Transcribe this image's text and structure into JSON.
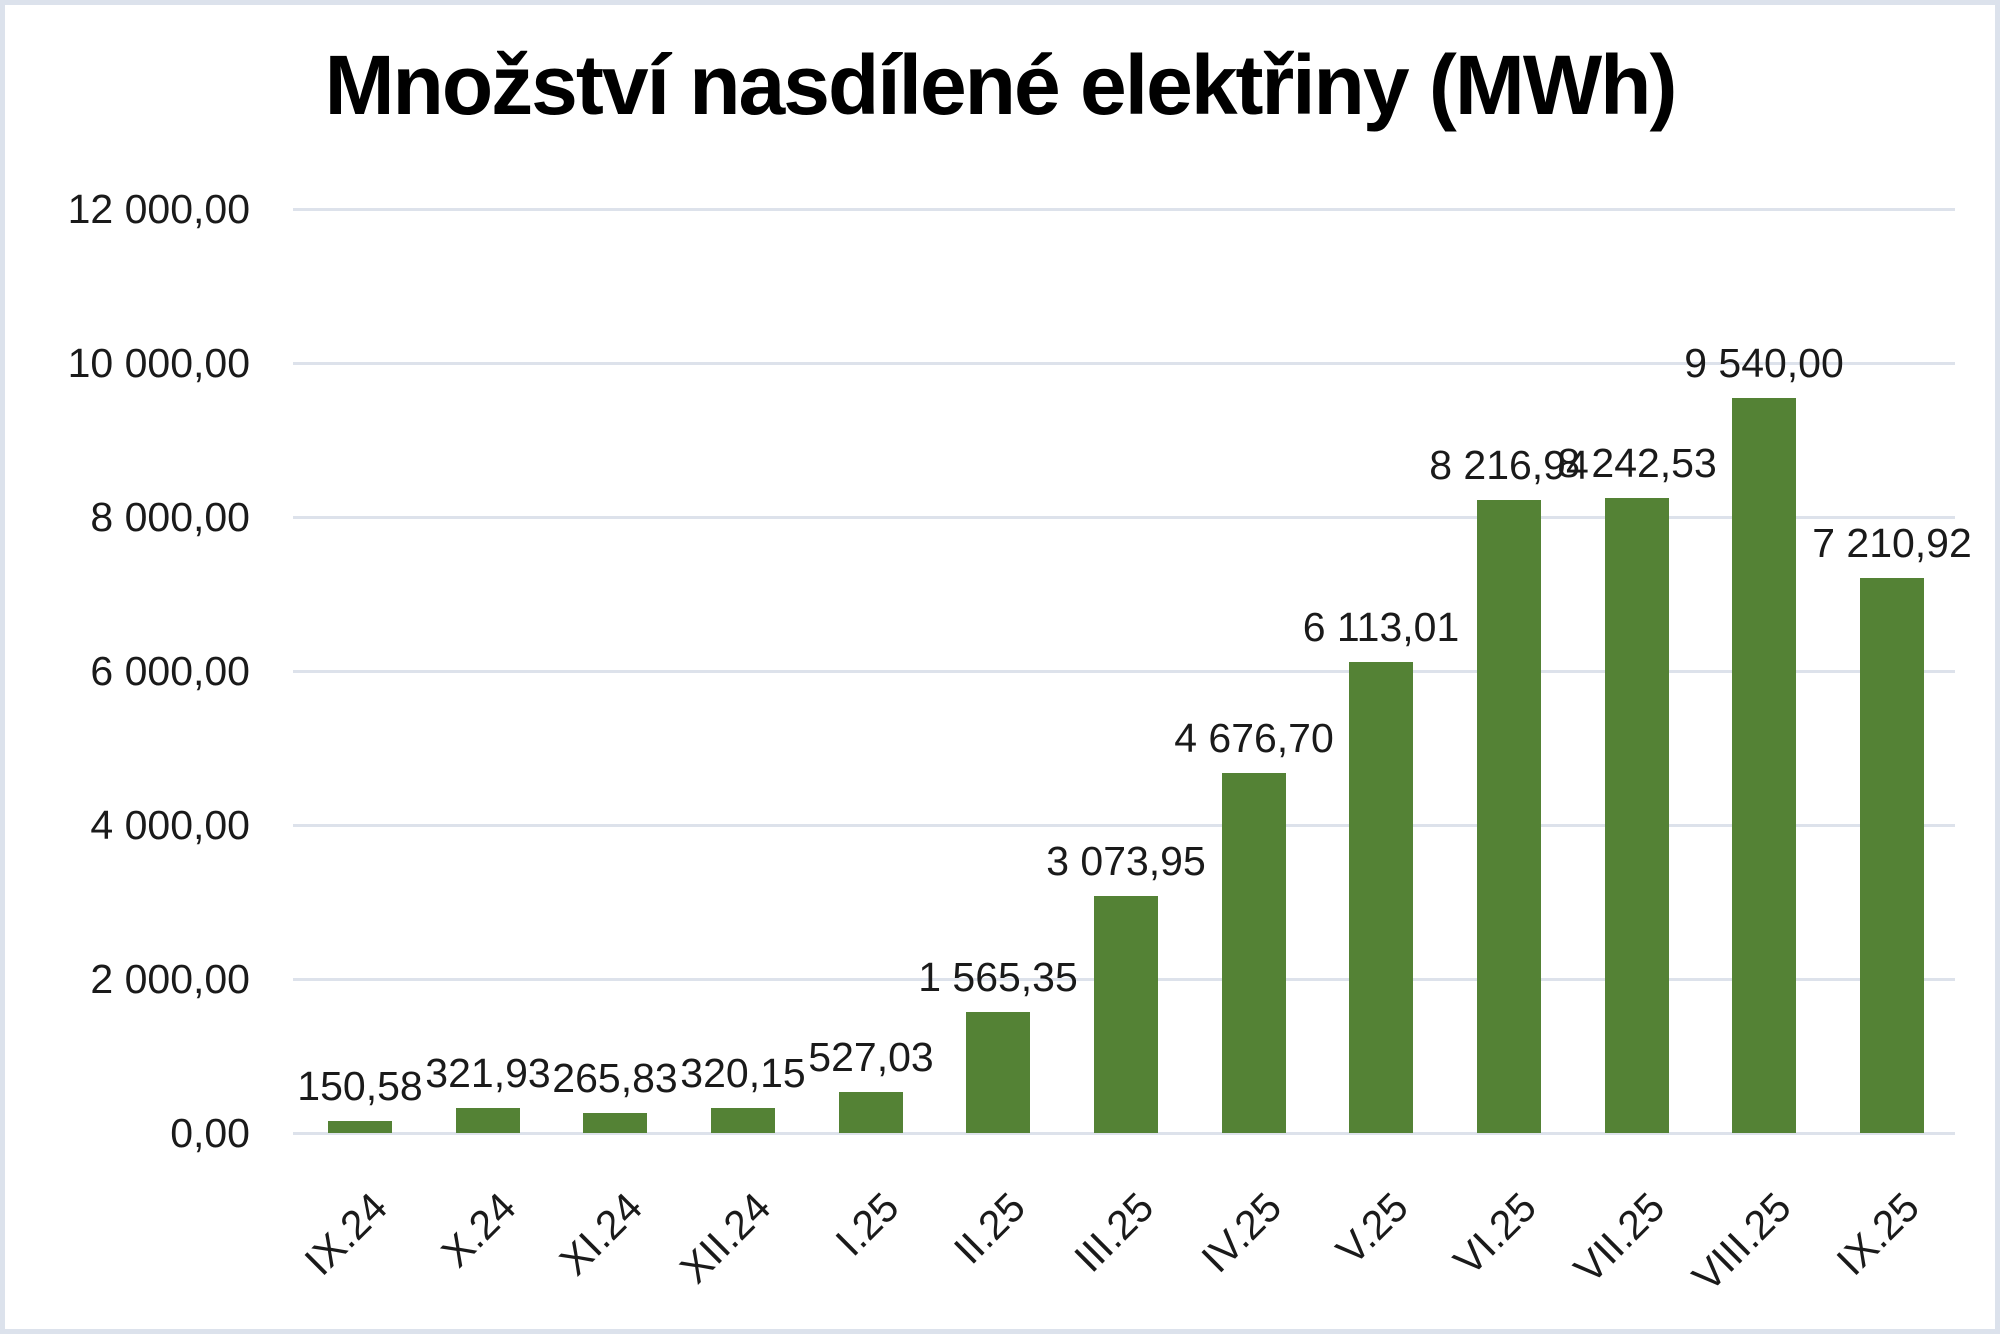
{
  "chart_data": {
    "type": "bar",
    "title": "Množství nasdílené elektřiny (MWh)",
    "categories": [
      "IX.24",
      "X.24",
      "XI.24",
      "XII.24",
      "I.25",
      "II.25",
      "III.25",
      "IV.25",
      "V.25",
      "VI.25",
      "VII.25",
      "VIII.25",
      "IX.25"
    ],
    "values": [
      150.58,
      321.93,
      265.83,
      320.15,
      527.03,
      1565.35,
      3073.95,
      4676.7,
      6113.01,
      8216.94,
      8242.53,
      9540.0,
      7210.92
    ],
    "value_labels": [
      "150,58",
      "321,93",
      "265,83",
      "320,15",
      "527,03",
      "1 565,35",
      "3 073,95",
      "4 676,70",
      "6 113,01",
      "8 216,94",
      "8 242,53",
      "9 540,00",
      "7 210,92"
    ],
    "xlabel": "",
    "ylabel": "",
    "ylim": [
      0,
      12000
    ],
    "yticks": [
      {
        "value": 0,
        "label": "0,00"
      },
      {
        "value": 2000,
        "label": "2 000,00"
      },
      {
        "value": 4000,
        "label": "4 000,00"
      },
      {
        "value": 6000,
        "label": "6 000,00"
      },
      {
        "value": 8000,
        "label": "8 000,00"
      },
      {
        "value": 10000,
        "label": "10 000,00"
      },
      {
        "value": 12000,
        "label": "12 000,00"
      }
    ],
    "grid": true,
    "legend": false,
    "colors": {
      "bar": "#548235",
      "gridline": "#dde2eb",
      "frame_border": "#dce2ec",
      "text": "#1a1a1a",
      "background": "#ffffff"
    }
  }
}
